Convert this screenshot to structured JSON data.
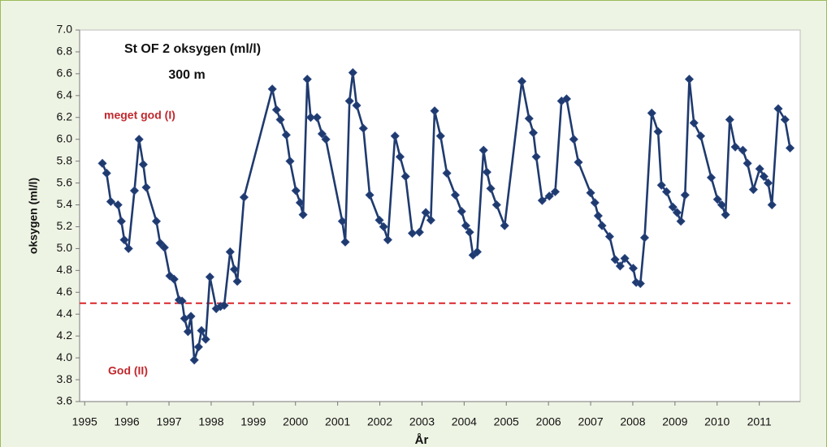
{
  "chart_data": {
    "type": "line",
    "title": "St OF 2 oksygen (ml/l)",
    "subtitle": "300 m",
    "x_label": "År",
    "y_label": "oksygen (ml/l)",
    "color": "#1f3a6e",
    "marker": "diamond",
    "grid": false,
    "xlim": [
      1994.88,
      2011.97
    ],
    "ylim": [
      3.6,
      7.0
    ],
    "xticks": [
      1995,
      1996,
      1997,
      1998,
      1999,
      2000,
      2001,
      2002,
      2003,
      2004,
      2005,
      2006,
      2007,
      2008,
      2009,
      2010,
      2011
    ],
    "yticks": [
      3.6,
      3.8,
      {
        "value": 4.0,
        "label": "4.0"
      },
      4.2,
      4.4,
      4.6,
      4.8,
      {
        "value": 5.0,
        "label": "5.0"
      },
      5.2,
      5.4,
      5.6,
      5.8,
      {
        "value": 6.0,
        "label": "6.0"
      },
      6.2,
      6.4,
      6.6,
      6.8,
      {
        "value": 7.0,
        "label": "7.0"
      }
    ],
    "reference_line": {
      "value": 4.5,
      "color": "#d9262b"
    },
    "annotations": [
      {
        "text": "meget god (I)",
        "color": "#c0282d"
      },
      {
        "text": "God (II)",
        "color": "#c0282d"
      }
    ],
    "x": [
      1995.42,
      1995.52,
      1995.62,
      1995.79,
      1995.87,
      1995.94,
      1996.04,
      1996.18,
      1996.29,
      1996.39,
      1996.46,
      1996.7,
      1996.79,
      1996.89,
      1997.02,
      1997.12,
      1997.24,
      1997.31,
      1997.37,
      1997.45,
      1997.52,
      1997.6,
      1997.7,
      1997.77,
      1997.87,
      1997.97,
      1998.12,
      1998.22,
      1998.31,
      1998.45,
      1998.55,
      1998.62,
      1998.78,
      1999.45,
      1999.55,
      1999.64,
      1999.78,
      1999.87,
      2000.01,
      2000.11,
      2000.18,
      2000.28,
      2000.36,
      2000.51,
      2000.63,
      2000.72,
      2001.11,
      2001.18,
      2001.28,
      2001.36,
      2001.45,
      2001.61,
      2001.76,
      2001.99,
      2002.09,
      2002.19,
      2002.36,
      2002.48,
      2002.61,
      2002.77,
      2002.94,
      2003.09,
      2003.21,
      2003.3,
      2003.44,
      2003.59,
      2003.79,
      2003.94,
      2004.04,
      2004.13,
      2004.21,
      2004.31,
      2004.46,
      2004.54,
      2004.63,
      2004.77,
      2004.96,
      2005.37,
      2005.54,
      2005.64,
      2005.71,
      2005.85,
      2006.02,
      2006.16,
      2006.31,
      2006.43,
      2006.6,
      2006.71,
      2007.0,
      2007.1,
      2007.18,
      2007.27,
      2007.45,
      2007.58,
      2007.7,
      2007.81,
      2008.01,
      2008.08,
      2008.18,
      2008.28,
      2008.45,
      2008.6,
      2008.68,
      2008.8,
      2008.95,
      2009.05,
      2009.14,
      2009.24,
      2009.34,
      2009.45,
      2009.61,
      2009.86,
      2010.01,
      2010.11,
      2010.2,
      2010.3,
      2010.43,
      2010.61,
      2010.72,
      2010.86,
      2011.01,
      2011.11,
      2011.21,
      2011.3,
      2011.45,
      2011.61,
      2011.73
    ],
    "values": [
      5.78,
      5.69,
      5.43,
      5.4,
      5.25,
      5.08,
      5.0,
      5.53,
      6.0,
      5.77,
      5.56,
      5.25,
      5.05,
      5.01,
      4.75,
      4.72,
      4.53,
      4.52,
      4.36,
      4.24,
      4.38,
      3.98,
      4.1,
      4.25,
      4.17,
      4.74,
      4.45,
      4.47,
      4.48,
      4.97,
      4.81,
      4.7,
      5.47,
      6.46,
      6.27,
      6.18,
      6.04,
      5.8,
      5.53,
      5.42,
      5.31,
      6.55,
      6.2,
      6.2,
      6.05,
      6.0,
      5.25,
      5.06,
      6.35,
      6.61,
      6.31,
      6.1,
      5.49,
      5.26,
      5.2,
      5.08,
      6.03,
      5.84,
      5.66,
      5.14,
      5.15,
      5.33,
      5.26,
      6.26,
      6.03,
      5.69,
      5.49,
      5.34,
      5.21,
      5.15,
      4.94,
      4.97,
      5.9,
      5.7,
      5.55,
      5.4,
      5.21,
      6.53,
      6.19,
      6.06,
      5.84,
      5.44,
      5.48,
      5.52,
      6.35,
      6.37,
      6.0,
      5.79,
      5.51,
      5.42,
      5.3,
      5.21,
      5.11,
      4.9,
      4.84,
      4.91,
      4.82,
      4.69,
      4.68,
      5.1,
      6.24,
      6.07,
      5.58,
      5.52,
      5.38,
      5.33,
      5.25,
      5.49,
      6.55,
      6.15,
      6.03,
      5.65,
      5.45,
      5.4,
      5.31,
      6.18,
      5.93,
      5.9,
      5.78,
      5.54,
      5.73,
      5.66,
      5.6,
      5.4,
      6.28,
      6.18,
      5.92
    ]
  }
}
